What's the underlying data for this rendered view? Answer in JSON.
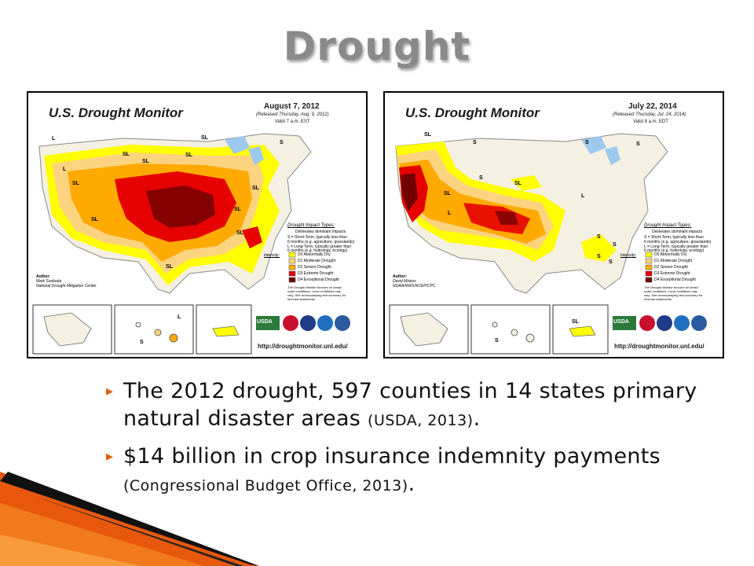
{
  "slide": {
    "title": "Drought"
  },
  "maps": [
    {
      "heading": "U.S. Drought Monitor",
      "date": "August 7, 2012",
      "released": "(Released Thursday, Aug. 9, 2012)",
      "valid": "Valid 7 a.m. EST",
      "author_label": "Author:",
      "author_name": "Mark Svoboda",
      "author_org": "National Drought Mitigation Center",
      "url": "http://droughtmonitor.unl.edu/",
      "impact_title": "Drought Impact Types:",
      "impact_items": [
        "Delineates dominant impacts",
        "S = Short-Term, typically less than",
        "6 months (e.g. agriculture, grasslands)",
        "L = Long-Term, typically greater than",
        "6 months (e.g. hydrology, ecology)"
      ],
      "intensity_title": "Intensity:",
      "intensity_items": [
        "D0 Abnormally Dry",
        "D1 Moderate Drought",
        "D2 Severe Drought",
        "D3 Extreme Drought",
        "D4 Exceptional Drought"
      ],
      "note": [
        "The Drought Monitor focuses on broad-",
        "scale conditions. Local conditions may",
        "vary. See accompanying text summary for",
        "forecast statements."
      ],
      "map_labels": [
        "SL",
        "SL",
        "SL",
        "SL",
        "SL",
        "SL",
        "SL",
        "SL",
        "SL",
        "S",
        "L",
        "L",
        "S",
        "L",
        "SL"
      ]
    },
    {
      "heading": "U.S. Drought Monitor",
      "date": "July 22, 2014",
      "released": "(Released Thursday, Jul. 24, 2014)",
      "valid": "Valid 8 a.m. EDT",
      "author_label": "Author:",
      "author_name": "David Miskus",
      "author_org": "NOAA/NWS/NCEP/CPC",
      "url": "http://droughtmonitor.unl.edu/",
      "impact_title": "Drought Impact Types:",
      "impact_items": [
        "Delineates dominant impacts",
        "S = Short-Term, typically less than",
        "6 months (e.g. agriculture, grasslands)",
        "L = Long-Term, typically greater than",
        "6 months (e.g. hydrology, ecology)"
      ],
      "intensity_title": "Intensity:",
      "intensity_items": [
        "D0 Abnormally Dry",
        "D1 Moderate Drought",
        "D2 Severe Drought",
        "D3 Extreme Drought",
        "D4 Exceptional Drought"
      ],
      "note": [
        "The Drought Monitor focuses on broad-",
        "scale conditions. Local conditions may",
        "vary. See accompanying text summary for",
        "forecast statements."
      ],
      "map_labels": [
        "SL",
        "S",
        "SL",
        "L",
        "S",
        "S",
        "S",
        "L",
        "SL",
        "S",
        "S",
        "S",
        "S",
        "S",
        "SL"
      ]
    }
  ],
  "agency_labels": [
    "USDA"
  ],
  "intensity_colors": [
    "#ffff00",
    "#fcd37f",
    "#ffaa00",
    "#e60000",
    "#730000"
  ],
  "bullets": [
    {
      "text": "The 2012 drought, 597 counties in 14 states primary natural disaster areas ",
      "cite": "(USDA, 2013)",
      "end": "."
    },
    {
      "text": "$14 billion in crop insurance indemnity payments ",
      "cite": "(Congressional Budget Office, 2013)",
      "end": "."
    }
  ],
  "bullet_marker": "▸"
}
